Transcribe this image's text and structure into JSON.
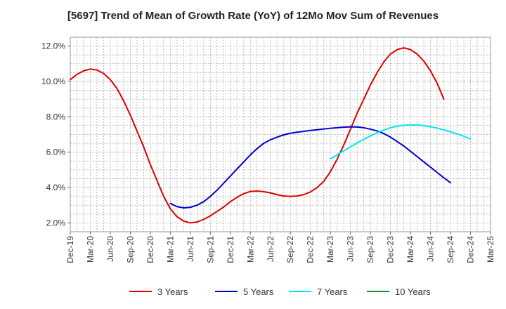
{
  "chart_data": {
    "type": "line",
    "title": "[5697]  Trend of Mean of Growth Rate (YoY) of 12Mo Mov Sum of Revenues",
    "xlabel": "",
    "ylabel": "",
    "x_tick_labels": [
      "Dec-19",
      "Mar-20",
      "Jun-20",
      "Sep-20",
      "Dec-20",
      "Mar-21",
      "Jun-21",
      "Sep-21",
      "Dec-21",
      "Mar-22",
      "Jun-22",
      "Sep-22",
      "Dec-22",
      "Mar-23",
      "Jun-23",
      "Sep-23",
      "Dec-23",
      "Mar-24",
      "Jun-24",
      "Sep-24",
      "Dec-24",
      "Mar-25"
    ],
    "y_tick_labels": [
      "2.0%",
      "4.0%",
      "6.0%",
      "8.0%",
      "10.0%",
      "12.0%"
    ],
    "y_ticks": [
      2,
      4,
      6,
      8,
      10,
      12
    ],
    "ylim": [
      1.5,
      12.5
    ],
    "xlim_months": [
      0,
      63
    ],
    "grid": true,
    "legend_position": "bottom",
    "series": [
      {
        "name": "3 Years",
        "color": "#dd0000",
        "start_month": 0,
        "values": [
          10.1,
          10.4,
          10.6,
          10.7,
          10.65,
          10.45,
          10.1,
          9.6,
          8.9,
          8.1,
          7.2,
          6.3,
          5.3,
          4.4,
          3.5,
          2.8,
          2.35,
          2.1,
          2.0,
          2.05,
          2.2,
          2.4,
          2.65,
          2.9,
          3.2,
          3.45,
          3.65,
          3.78,
          3.8,
          3.77,
          3.7,
          3.6,
          3.52,
          3.5,
          3.52,
          3.6,
          3.75,
          4.0,
          4.35,
          4.9,
          5.6,
          6.4,
          7.3,
          8.2,
          9.0,
          9.8,
          10.5,
          11.1,
          11.55,
          11.8,
          11.9,
          11.8,
          11.55,
          11.15,
          10.6,
          9.9,
          9.0
        ]
      },
      {
        "name": "5 Years",
        "color": "#0000cc",
        "start_month": 15,
        "values": [
          3.1,
          2.92,
          2.85,
          2.88,
          3.0,
          3.2,
          3.5,
          3.85,
          4.25,
          4.65,
          5.05,
          5.45,
          5.85,
          6.2,
          6.5,
          6.7,
          6.85,
          6.98,
          7.07,
          7.13,
          7.18,
          7.23,
          7.27,
          7.31,
          7.35,
          7.38,
          7.41,
          7.43,
          7.42,
          7.38,
          7.3,
          7.2,
          7.05,
          6.85,
          6.6,
          6.35,
          6.05,
          5.75,
          5.45,
          5.15,
          4.85,
          4.55,
          4.27
        ]
      },
      {
        "name": "7 Years",
        "color": "#00e5ee",
        "start_month": 39,
        "values": [
          5.62,
          5.85,
          6.08,
          6.3,
          6.52,
          6.73,
          6.92,
          7.1,
          7.25,
          7.38,
          7.47,
          7.52,
          7.54,
          7.53,
          7.5,
          7.44,
          7.36,
          7.26,
          7.15,
          7.03,
          6.9,
          6.75
        ]
      },
      {
        "name": "10 Years",
        "color": "#228b22",
        "start_month": 0,
        "values": []
      }
    ]
  }
}
